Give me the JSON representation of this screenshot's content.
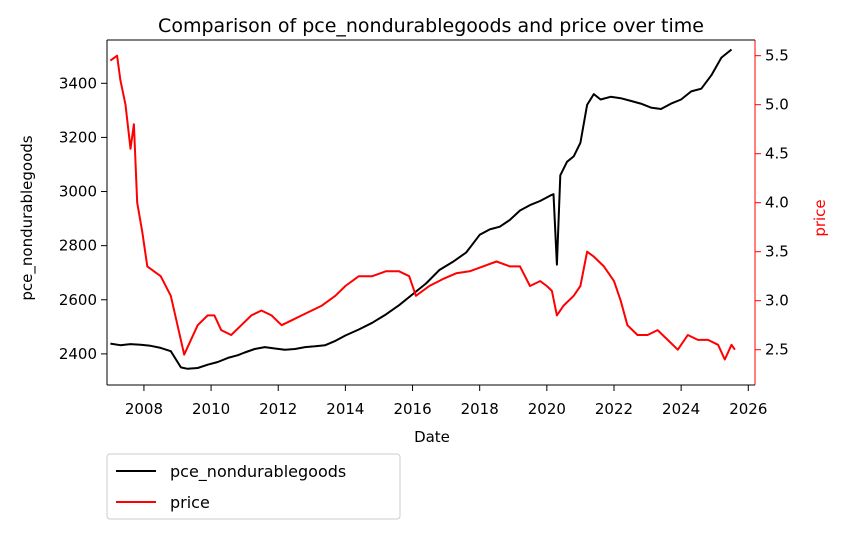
{
  "chart_data": {
    "type": "line",
    "title": "Comparison of pce_nondurablegoods and price over time",
    "xlabel": "Date",
    "ylabel_left": "pce_nondurablegoods",
    "ylabel_right": "price",
    "xlim": [
      2006.9,
      2026.2
    ],
    "ylim_left": [
      2285,
      3560
    ],
    "ylim_right": [
      2.14,
      5.66
    ],
    "x_ticks": [
      2008,
      2010,
      2012,
      2014,
      2016,
      2018,
      2020,
      2022,
      2024,
      2026
    ],
    "y_ticks_left": [
      2400,
      2600,
      2800,
      3000,
      3200,
      3400
    ],
    "y_ticks_right": [
      2.5,
      3.0,
      3.5,
      4.0,
      4.5,
      5.0,
      5.5
    ],
    "grid": false,
    "legend_position": "bottom-left, below axes",
    "colors": {
      "left_series": "#000000",
      "right_series": "#ff0000",
      "axis": "#000000",
      "right_axis": "#ff0000"
    },
    "series": [
      {
        "name": "pce_nondurablegoods",
        "axis": "left",
        "points": [
          [
            2007.0,
            2438
          ],
          [
            2007.3,
            2432
          ],
          [
            2007.6,
            2436
          ],
          [
            2007.9,
            2434
          ],
          [
            2008.2,
            2430
          ],
          [
            2008.5,
            2422
          ],
          [
            2008.8,
            2410
          ],
          [
            2009.1,
            2350
          ],
          [
            2009.3,
            2345
          ],
          [
            2009.6,
            2348
          ],
          [
            2009.9,
            2360
          ],
          [
            2010.2,
            2370
          ],
          [
            2010.5,
            2385
          ],
          [
            2010.8,
            2395
          ],
          [
            2011.0,
            2405
          ],
          [
            2011.3,
            2418
          ],
          [
            2011.6,
            2425
          ],
          [
            2011.9,
            2420
          ],
          [
            2012.2,
            2415
          ],
          [
            2012.5,
            2418
          ],
          [
            2012.8,
            2425
          ],
          [
            2013.1,
            2428
          ],
          [
            2013.4,
            2432
          ],
          [
            2013.7,
            2448
          ],
          [
            2014.0,
            2468
          ],
          [
            2014.4,
            2490
          ],
          [
            2014.8,
            2515
          ],
          [
            2015.2,
            2545
          ],
          [
            2015.6,
            2580
          ],
          [
            2016.0,
            2620
          ],
          [
            2016.4,
            2660
          ],
          [
            2016.8,
            2710
          ],
          [
            2017.2,
            2740
          ],
          [
            2017.6,
            2775
          ],
          [
            2018.0,
            2840
          ],
          [
            2018.3,
            2860
          ],
          [
            2018.6,
            2870
          ],
          [
            2018.9,
            2895
          ],
          [
            2019.2,
            2930
          ],
          [
            2019.5,
            2950
          ],
          [
            2019.8,
            2965
          ],
          [
            2020.1,
            2985
          ],
          [
            2020.2,
            2990
          ],
          [
            2020.3,
            2730
          ],
          [
            2020.4,
            3060
          ],
          [
            2020.6,
            3110
          ],
          [
            2020.8,
            3130
          ],
          [
            2021.0,
            3180
          ],
          [
            2021.2,
            3320
          ],
          [
            2021.4,
            3360
          ],
          [
            2021.6,
            3340
          ],
          [
            2021.9,
            3350
          ],
          [
            2022.2,
            3345
          ],
          [
            2022.5,
            3335
          ],
          [
            2022.8,
            3325
          ],
          [
            2023.1,
            3310
          ],
          [
            2023.4,
            3305
          ],
          [
            2023.7,
            3325
          ],
          [
            2024.0,
            3340
          ],
          [
            2024.3,
            3370
          ],
          [
            2024.6,
            3380
          ],
          [
            2024.9,
            3430
          ],
          [
            2025.2,
            3495
          ],
          [
            2025.5,
            3525
          ]
        ]
      },
      {
        "name": "price",
        "axis": "right",
        "points": [
          [
            2007.0,
            5.45
          ],
          [
            2007.2,
            5.5
          ],
          [
            2007.3,
            5.25
          ],
          [
            2007.45,
            5.0
          ],
          [
            2007.6,
            4.55
          ],
          [
            2007.7,
            4.8
          ],
          [
            2007.8,
            4.0
          ],
          [
            2007.95,
            3.7
          ],
          [
            2008.1,
            3.35
          ],
          [
            2008.3,
            3.3
          ],
          [
            2008.5,
            3.25
          ],
          [
            2008.8,
            3.05
          ],
          [
            2009.0,
            2.75
          ],
          [
            2009.2,
            2.45
          ],
          [
            2009.4,
            2.6
          ],
          [
            2009.6,
            2.75
          ],
          [
            2009.9,
            2.85
          ],
          [
            2010.1,
            2.85
          ],
          [
            2010.3,
            2.7
          ],
          [
            2010.6,
            2.65
          ],
          [
            2010.9,
            2.75
          ],
          [
            2011.2,
            2.85
          ],
          [
            2011.5,
            2.9
          ],
          [
            2011.8,
            2.85
          ],
          [
            2012.1,
            2.75
          ],
          [
            2012.4,
            2.8
          ],
          [
            2012.7,
            2.85
          ],
          [
            2013.0,
            2.9
          ],
          [
            2013.3,
            2.95
          ],
          [
            2013.7,
            3.05
          ],
          [
            2014.0,
            3.15
          ],
          [
            2014.4,
            3.25
          ],
          [
            2014.8,
            3.25
          ],
          [
            2015.2,
            3.3
          ],
          [
            2015.6,
            3.3
          ],
          [
            2015.9,
            3.25
          ],
          [
            2016.1,
            3.05
          ],
          [
            2016.5,
            3.15
          ],
          [
            2016.9,
            3.22
          ],
          [
            2017.3,
            3.28
          ],
          [
            2017.7,
            3.3
          ],
          [
            2018.1,
            3.35
          ],
          [
            2018.5,
            3.4
          ],
          [
            2018.9,
            3.35
          ],
          [
            2019.2,
            3.35
          ],
          [
            2019.5,
            3.15
          ],
          [
            2019.8,
            3.2
          ],
          [
            2020.0,
            3.15
          ],
          [
            2020.15,
            3.1
          ],
          [
            2020.3,
            2.85
          ],
          [
            2020.5,
            2.95
          ],
          [
            2020.8,
            3.05
          ],
          [
            2021.0,
            3.15
          ],
          [
            2021.2,
            3.5
          ],
          [
            2021.4,
            3.45
          ],
          [
            2021.7,
            3.35
          ],
          [
            2022.0,
            3.2
          ],
          [
            2022.2,
            3.0
          ],
          [
            2022.4,
            2.75
          ],
          [
            2022.7,
            2.65
          ],
          [
            2023.0,
            2.65
          ],
          [
            2023.3,
            2.7
          ],
          [
            2023.6,
            2.6
          ],
          [
            2023.9,
            2.5
          ],
          [
            2024.2,
            2.65
          ],
          [
            2024.5,
            2.6
          ],
          [
            2024.8,
            2.6
          ],
          [
            2025.1,
            2.55
          ],
          [
            2025.3,
            2.4
          ],
          [
            2025.5,
            2.55
          ],
          [
            2025.6,
            2.5
          ]
        ]
      }
    ]
  }
}
